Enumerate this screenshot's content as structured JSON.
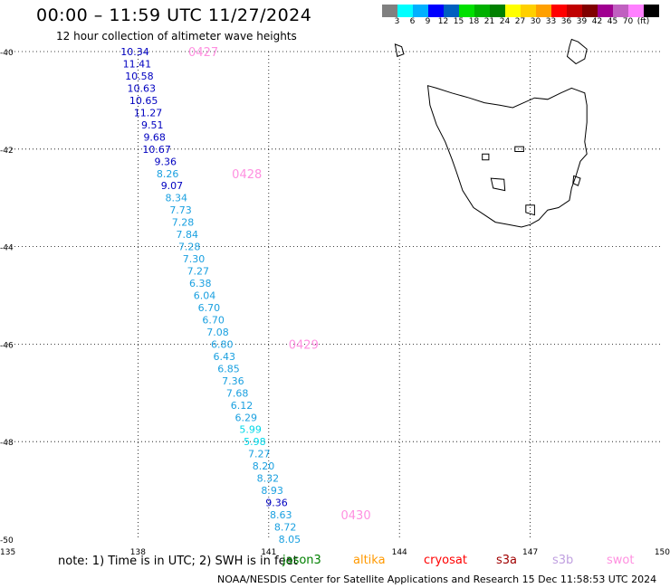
{
  "header": {
    "title": "00:00 – 11:59 UTC 11/27/2024",
    "subtitle": "12 hour collection of altimeter wave heights"
  },
  "legend": {
    "colors": [
      "#808080",
      "#00ffff",
      "#00b0ff",
      "#0000ff",
      "#0060c0",
      "#00e000",
      "#00b000",
      "#008000",
      "#ffff00",
      "#ffd000",
      "#ffa000",
      "#ff0000",
      "#c00000",
      "#800000",
      "#a00090",
      "#c060c0",
      "#ff80ff",
      "#000000"
    ],
    "labels": [
      "3",
      "6",
      "9",
      "12",
      "15",
      "18",
      "21",
      "24",
      "27",
      "30",
      "33",
      "36",
      "39",
      "42",
      "45",
      "70",
      "(ft)"
    ]
  },
  "map": {
    "lon_range": [
      135,
      150
    ],
    "lat_range": [
      -50,
      -40
    ],
    "x_ticks": [
      "135",
      "138",
      "141",
      "144",
      "147",
      "150"
    ],
    "y_ticks": [
      "-40",
      "-42",
      "-44",
      "-46",
      "-48",
      "-50"
    ],
    "coast_color": "#000000"
  },
  "track": {
    "points": [
      {
        "lat": -40.0,
        "lon": 137.93,
        "value": "10.34",
        "color": "#0000c0"
      },
      {
        "lat": -40.25,
        "lon": 137.98,
        "value": "11.41",
        "color": "#0000c0"
      },
      {
        "lat": -40.5,
        "lon": 138.03,
        "value": "10.58",
        "color": "#0000c0"
      },
      {
        "lat": -40.75,
        "lon": 138.08,
        "value": "10.63",
        "color": "#0000c0"
      },
      {
        "lat": -41.0,
        "lon": 138.13,
        "value": "10.65",
        "color": "#0000c0"
      },
      {
        "lat": -41.25,
        "lon": 138.23,
        "value": "11.27",
        "color": "#0000c0"
      },
      {
        "lat": -41.5,
        "lon": 138.33,
        "value": "9.51",
        "color": "#0000c0"
      },
      {
        "lat": -41.75,
        "lon": 138.38,
        "value": "9.68",
        "color": "#0000c0"
      },
      {
        "lat": -42.0,
        "lon": 138.43,
        "value": "10.67",
        "color": "#0000c0"
      },
      {
        "lat": -42.25,
        "lon": 138.63,
        "value": "9.36",
        "color": "#0000c0"
      },
      {
        "lat": -42.5,
        "lon": 138.68,
        "value": "8.26",
        "color": "#1aa0e0"
      },
      {
        "lat": -42.75,
        "lon": 138.78,
        "value": "9.07",
        "color": "#0000c0"
      },
      {
        "lat": -43.0,
        "lon": 138.88,
        "value": "8.34",
        "color": "#1aa0e0"
      },
      {
        "lat": -43.25,
        "lon": 138.98,
        "value": "7.73",
        "color": "#1aa0e0"
      },
      {
        "lat": -43.5,
        "lon": 139.03,
        "value": "7.28",
        "color": "#1aa0e0"
      },
      {
        "lat": -43.75,
        "lon": 139.13,
        "value": "7.84",
        "color": "#1aa0e0"
      },
      {
        "lat": -44.0,
        "lon": 139.18,
        "value": "7.28",
        "color": "#1aa0e0"
      },
      {
        "lat": -44.25,
        "lon": 139.28,
        "value": "7.30",
        "color": "#1aa0e0"
      },
      {
        "lat": -44.5,
        "lon": 139.38,
        "value": "7.27",
        "color": "#1aa0e0"
      },
      {
        "lat": -44.75,
        "lon": 139.43,
        "value": "6.38",
        "color": "#1aa0e0"
      },
      {
        "lat": -45.0,
        "lon": 139.53,
        "value": "6.04",
        "color": "#1aa0e0"
      },
      {
        "lat": -45.25,
        "lon": 139.63,
        "value": "6.70",
        "color": "#1aa0e0"
      },
      {
        "lat": -45.5,
        "lon": 139.73,
        "value": "6.70",
        "color": "#1aa0e0"
      },
      {
        "lat": -45.75,
        "lon": 139.83,
        "value": "7.08",
        "color": "#1aa0e0"
      },
      {
        "lat": -46.0,
        "lon": 139.93,
        "value": "6.80",
        "color": "#1aa0e0"
      },
      {
        "lat": -46.25,
        "lon": 139.98,
        "value": "6.43",
        "color": "#1aa0e0"
      },
      {
        "lat": -46.5,
        "lon": 140.08,
        "value": "6.85",
        "color": "#1aa0e0"
      },
      {
        "lat": -46.75,
        "lon": 140.18,
        "value": "7.36",
        "color": "#1aa0e0"
      },
      {
        "lat": -47.0,
        "lon": 140.28,
        "value": "7.68",
        "color": "#1aa0e0"
      },
      {
        "lat": -47.25,
        "lon": 140.38,
        "value": "6.12",
        "color": "#1aa0e0"
      },
      {
        "lat": -47.5,
        "lon": 140.48,
        "value": "6.29",
        "color": "#1aa0e0"
      },
      {
        "lat": -47.75,
        "lon": 140.58,
        "value": "5.99",
        "color": "#00d8e8"
      },
      {
        "lat": -48.0,
        "lon": 140.68,
        "value": "5.98",
        "color": "#00d8e8"
      },
      {
        "lat": -48.25,
        "lon": 140.78,
        "value": "7.27",
        "color": "#1aa0e0"
      },
      {
        "lat": -48.5,
        "lon": 140.88,
        "value": "8.20",
        "color": "#1aa0e0"
      },
      {
        "lat": -48.75,
        "lon": 140.98,
        "value": "8.32",
        "color": "#1aa0e0"
      },
      {
        "lat": -49.0,
        "lon": 141.08,
        "value": "8.93",
        "color": "#1aa0e0"
      },
      {
        "lat": -49.25,
        "lon": 141.18,
        "value": "9.36",
        "color": "#0000c0"
      },
      {
        "lat": -49.5,
        "lon": 141.28,
        "value": "8.63",
        "color": "#1aa0e0"
      },
      {
        "lat": -49.75,
        "lon": 141.38,
        "value": "8.72",
        "color": "#1aa0e0"
      },
      {
        "lat": -50.0,
        "lon": 141.48,
        "value": "8.05",
        "color": "#1aa0e0"
      }
    ],
    "time_labels": [
      {
        "text": "0427",
        "lat": -40.0,
        "lon": 139.5
      },
      {
        "text": "0428",
        "lat": -42.5,
        "lon": 140.5
      },
      {
        "text": "0429",
        "lat": -46.0,
        "lon": 141.8
      },
      {
        "text": "0430",
        "lat": -49.5,
        "lon": 143.0
      }
    ],
    "time_color": "#ff90e0"
  },
  "footer": {
    "note": "note: 1) Time is in UTC; 2) SWH is in feet",
    "satellites": [
      {
        "name": "jason3",
        "color": "#008000"
      },
      {
        "name": "altika",
        "color": "#ff9900"
      },
      {
        "name": "cryosat",
        "color": "#ff0000"
      },
      {
        "name": "s3a",
        "color": "#a00000"
      },
      {
        "name": "s3b",
        "color": "#c0a0e0"
      },
      {
        "name": "swot",
        "color": "#ff90e0"
      }
    ],
    "credit": "NOAA/NESDIS Center for Satellite Applications and Research   15 Dec 11:58:53 UTC 2024"
  }
}
